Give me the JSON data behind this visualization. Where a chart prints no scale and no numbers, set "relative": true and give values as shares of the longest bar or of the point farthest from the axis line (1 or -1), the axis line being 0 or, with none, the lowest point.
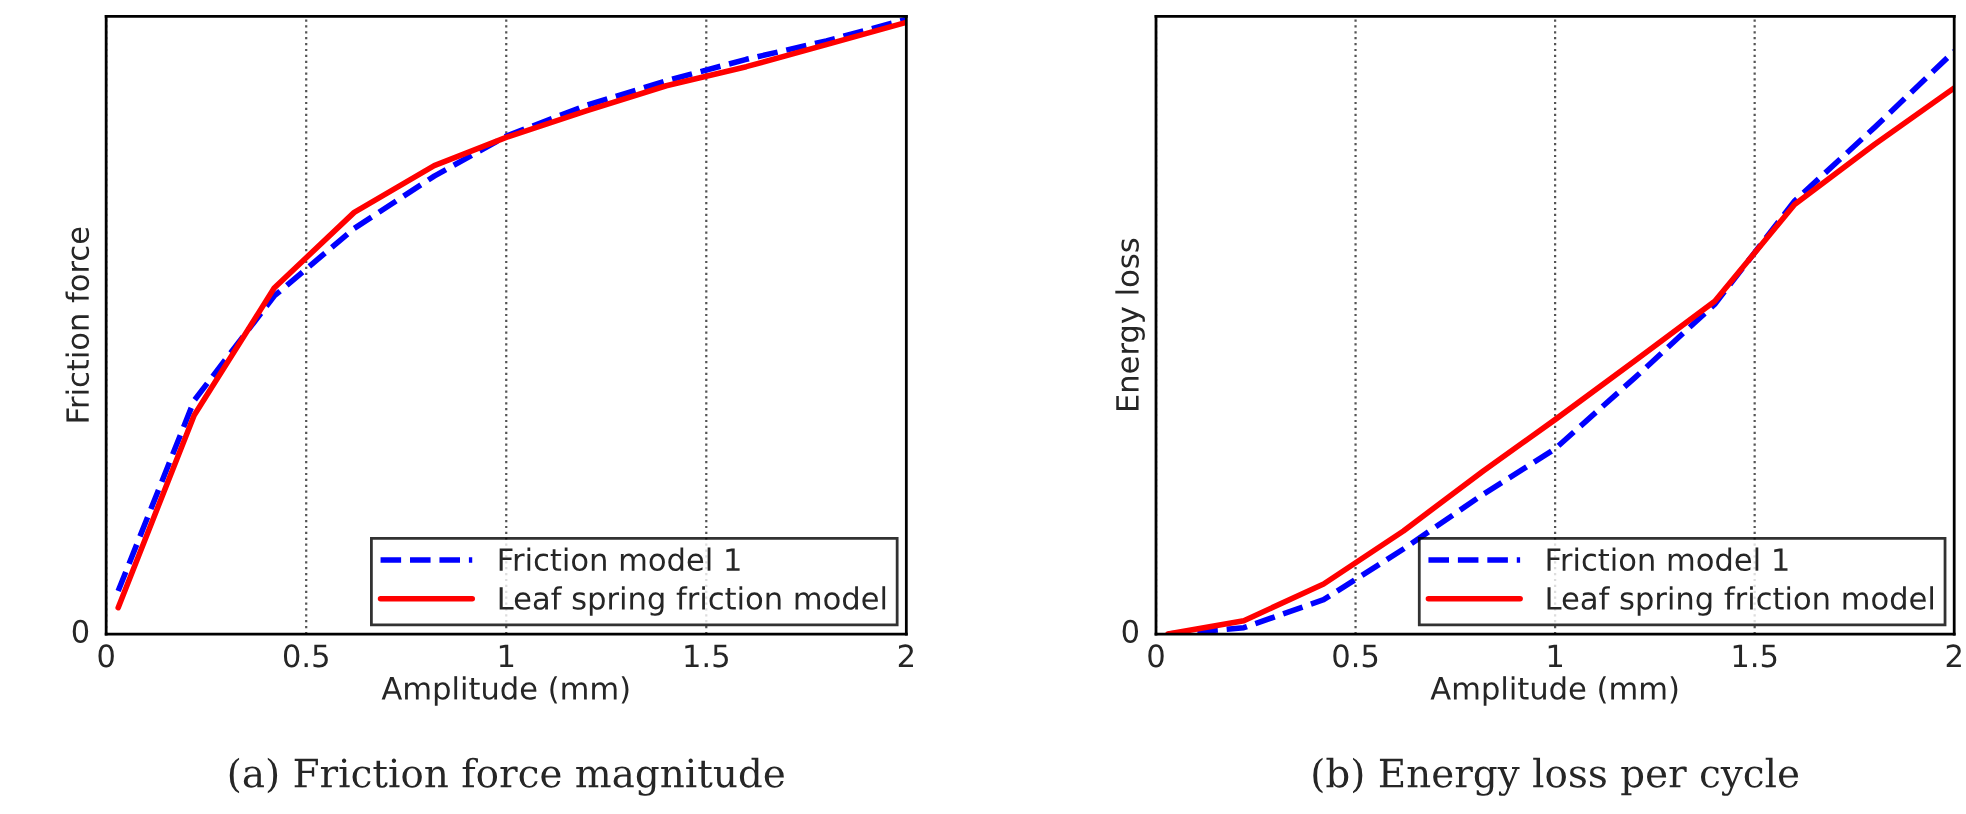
{
  "chart_data": [
    {
      "type": "line",
      "title": "(a) Friction force magnitude",
      "xlabel": "Amplitude (mm)",
      "ylabel": "Friction force",
      "relative": true,
      "x": [
        0.03,
        0.22,
        0.42,
        0.62,
        0.82,
        1.0,
        1.2,
        1.4,
        1.6,
        1.8,
        2.0
      ],
      "xlim": [
        0,
        2
      ],
      "xticks": [
        0,
        0.5,
        1,
        1.5,
        2
      ],
      "annotations": [
        "0"
      ],
      "grid": true,
      "legend": "bottom right",
      "series": [
        {
          "name": "Friction model 1",
          "color": "#0000ff",
          "line_style": "dashed",
          "values": [
            0.07,
            0.38,
            0.55,
            0.66,
            0.745,
            0.81,
            0.86,
            0.9,
            0.935,
            0.965,
            1.0
          ]
        },
        {
          "name": "Leaf spring friction model",
          "color": "#ff0000",
          "line_style": "solid",
          "values": [
            0.043,
            0.356,
            0.563,
            0.686,
            0.762,
            0.808,
            0.851,
            0.892,
            0.923,
            0.959,
            0.995
          ]
        }
      ]
    },
    {
      "type": "line",
      "title": "(b) Energy loss per cycle",
      "xlabel": "Amplitude (mm)",
      "ylabel": "Energy loss",
      "relative": true,
      "x": [
        0.03,
        0.22,
        0.42,
        0.62,
        0.82,
        1.0,
        1.2,
        1.4,
        1.6,
        1.8,
        2.0
      ],
      "xlim": [
        0,
        2
      ],
      "xticks": [
        0,
        0.5,
        1,
        1.5,
        2
      ],
      "annotations": [
        "0"
      ],
      "grid": true,
      "legend": "bottom right",
      "series": [
        {
          "name": "Friction model 1",
          "color": "#0000ff",
          "line_style": "dashed",
          "values": [
            0,
            0.011,
            0.059,
            0.146,
            0.24,
            0.318,
            0.44,
            0.566,
            0.743,
            0.869,
            1.0
          ]
        },
        {
          "name": "Leaf spring friction model",
          "color": "#ff0000",
          "line_style": "solid",
          "values": [
            0,
            0.023,
            0.086,
            0.177,
            0.28,
            0.368,
            0.469,
            0.571,
            0.737,
            0.84,
            0.937
          ]
        }
      ]
    }
  ]
}
